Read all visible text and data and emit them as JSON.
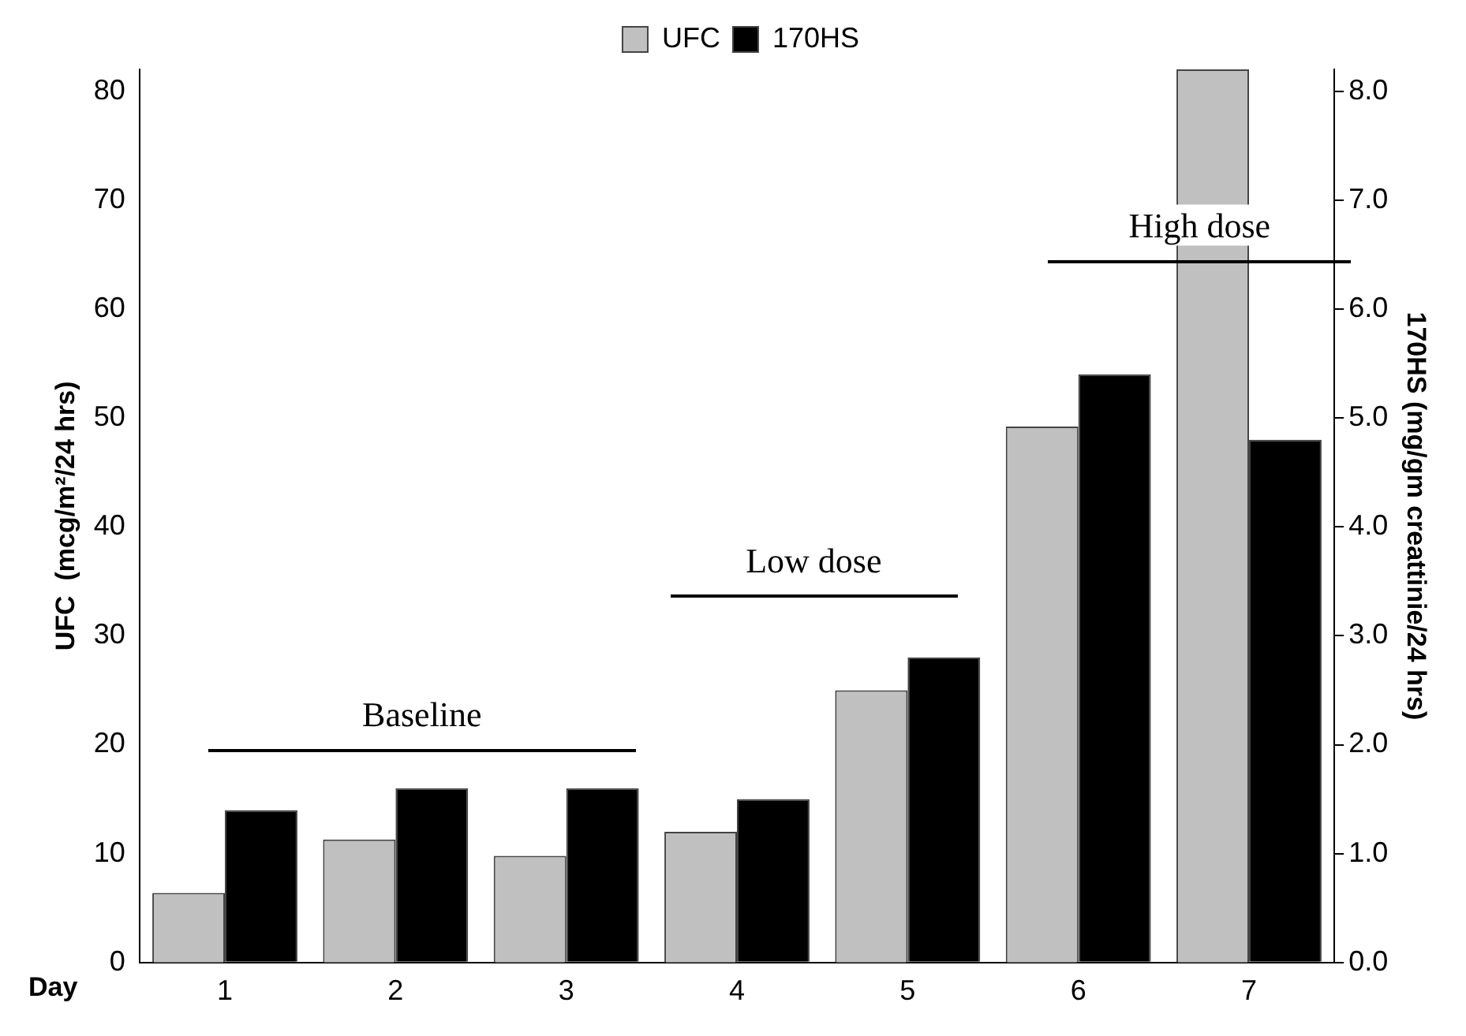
{
  "chart_data": {
    "type": "bar",
    "categories": [
      "1",
      "2",
      "3",
      "4",
      "5",
      "6",
      "7"
    ],
    "series": [
      {
        "name": "UFC",
        "color": "#c0c0c0",
        "values": [
          6.4,
          11.3,
          9.8,
          12,
          25,
          49.2,
          82
        ]
      },
      {
        "name": "170HS",
        "color": "#000000",
        "axis": "y2",
        "values": [
          1.4,
          1.6,
          1.6,
          1.5,
          2.8,
          5.4,
          4.8
        ]
      }
    ],
    "xlabel": "Day",
    "ylabel": "UFC  (mcg/m²/24 hrs)",
    "y2label": "170HS (mg/gm creattinie/24 hrs)",
    "ylim": [
      0,
      82
    ],
    "yticks": [
      0,
      10,
      20,
      30,
      40,
      50,
      60,
      70,
      80
    ],
    "y2lim": [
      0,
      8.2
    ],
    "y2ticks": [
      {
        "value": 0,
        "label": "0.0"
      },
      {
        "value": 1,
        "label": "1.0"
      },
      {
        "value": 2,
        "label": "2.0"
      },
      {
        "value": 3,
        "label": "3.0"
      },
      {
        "value": 4,
        "label": "4.0"
      },
      {
        "value": 5,
        "label": "5.0"
      },
      {
        "value": 6,
        "label": "6.0"
      },
      {
        "value": 7,
        "label": "7.0"
      },
      {
        "value": 8,
        "label": "8.0"
      }
    ],
    "annotations": [
      "Baseline",
      "Low dose",
      "High dose"
    ],
    "grid": false,
    "legend": "top"
  }
}
